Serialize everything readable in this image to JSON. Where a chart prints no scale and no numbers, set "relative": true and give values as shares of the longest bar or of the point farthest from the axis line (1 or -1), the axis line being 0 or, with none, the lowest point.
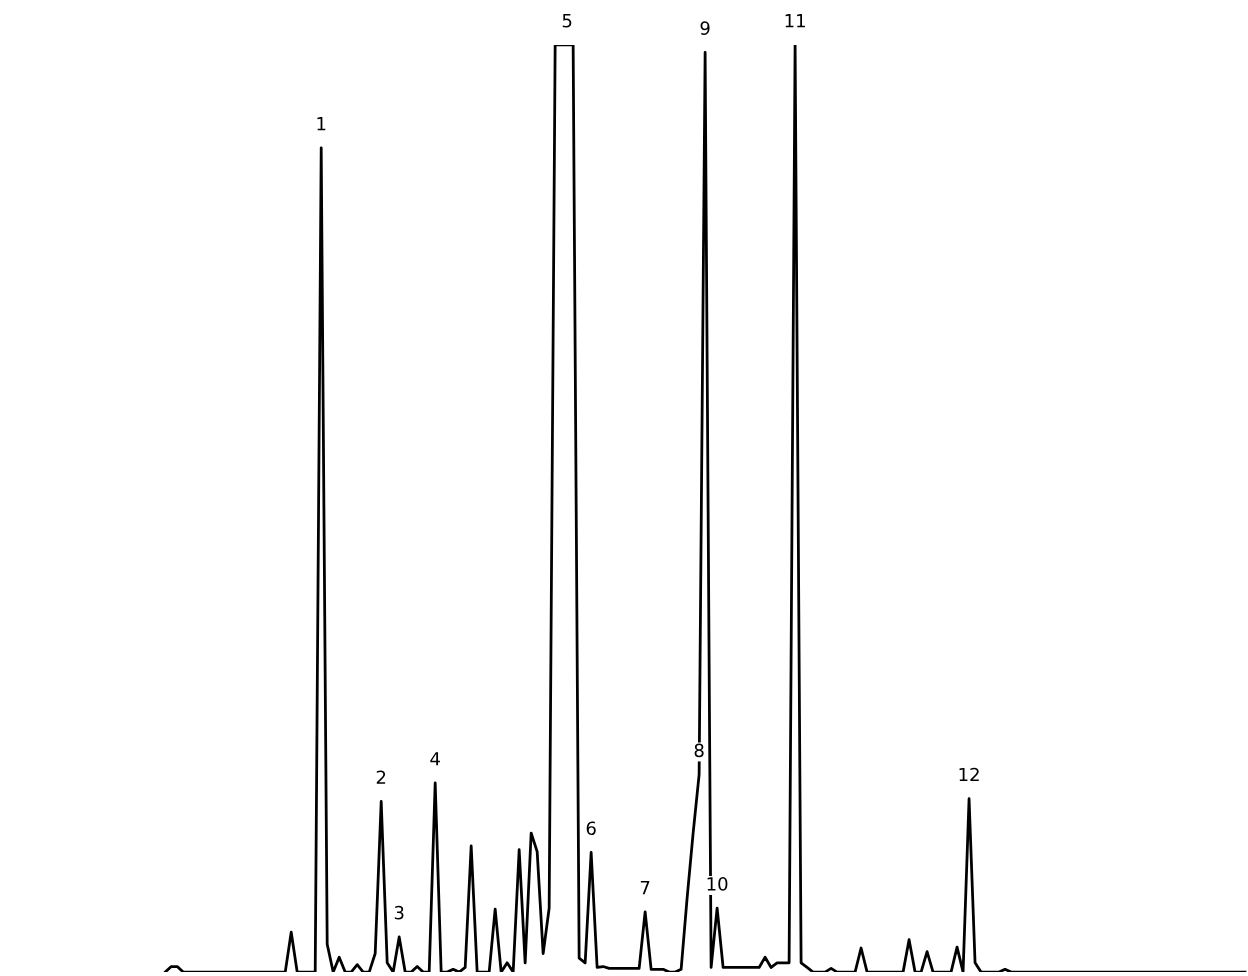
{
  "chart_data": {
    "type": "line",
    "relative": true,
    "color": "#000000",
    "marker": "none",
    "line_style": "solid",
    "legend": false,
    "categories": [
      null,
      null,
      null,
      null,
      null,
      null,
      null,
      null,
      null,
      null,
      null,
      null,
      null,
      null,
      null,
      null,
      null,
      null,
      null,
      null,
      null,
      null,
      null,
      null,
      null,
      null,
      "1",
      null,
      null,
      null,
      null,
      null,
      null,
      null,
      null,
      null,
      "2",
      null,
      null,
      "3",
      null,
      null,
      null,
      null,
      null,
      "4",
      null,
      null,
      null,
      null,
      null,
      null,
      null,
      null,
      null,
      null,
      null,
      null,
      null,
      null,
      null,
      null,
      null,
      null,
      null,
      null,
      null,
      "5",
      null,
      null,
      null,
      "6",
      null,
      null,
      null,
      null,
      null,
      null,
      null,
      null,
      "7",
      null,
      null,
      null,
      null,
      null,
      null,
      null,
      null,
      "8",
      "9",
      null,
      "10",
      null,
      null,
      null,
      null,
      null,
      null,
      null,
      null,
      null,
      null,
      null,
      null,
      "11",
      null,
      null,
      null,
      null,
      null,
      null,
      null,
      null,
      null,
      null,
      null,
      null,
      null,
      null,
      null,
      null,
      null,
      null,
      null,
      null,
      null,
      null,
      null,
      null,
      null,
      null,
      null,
      null,
      "12",
      null,
      null,
      null,
      null,
      null,
      null,
      null,
      null,
      null,
      null,
      null,
      null,
      null,
      null,
      null,
      null,
      null,
      null,
      null,
      null,
      null,
      null,
      null,
      null,
      null,
      null,
      null,
      null,
      null,
      null,
      null,
      null,
      null,
      null,
      null,
      null,
      null,
      null,
      null,
      null,
      null,
      null,
      null,
      null,
      null,
      null
    ],
    "values": [
      0,
      0.006,
      0.006,
      0,
      0,
      0,
      0,
      0,
      0,
      0,
      0,
      0,
      0,
      0,
      0,
      0,
      0,
      0,
      0,
      0,
      0,
      0.043,
      0,
      0,
      0,
      0,
      0.889,
      0.03,
      0,
      0.016,
      0,
      0,
      0.008,
      0,
      0,
      0.02,
      0.184,
      0.01,
      0,
      0.038,
      0,
      0,
      0.006,
      0,
      0,
      0.204,
      0,
      0,
      0.003,
      0,
      0.005,
      0.136,
      0,
      0,
      0,
      0.068,
      0,
      0.01,
      0,
      0.132,
      0.01,
      0.15,
      0.13,
      0.02,
      0.069,
      1,
      1,
      1,
      1,
      0.015,
      0.01,
      0.129,
      0.005,
      0.006,
      0.004,
      0.004,
      0.004,
      0.004,
      0.004,
      0.004,
      0.065,
      0.003,
      0.003,
      0.003,
      0,
      0,
      0.003,
      0.08,
      0.15,
      0.213,
      0.992,
      0.005,
      0.069,
      0.005,
      0.005,
      0.005,
      0.005,
      0.005,
      0.005,
      0.005,
      0.016,
      0.005,
      0.01,
      0.01,
      0.01,
      1,
      0.01,
      0.005,
      0,
      0,
      0,
      0.004,
      0,
      0,
      0,
      0,
      0.026,
      0,
      0,
      0,
      0,
      0,
      0,
      0,
      0.035,
      0,
      0,
      0.022,
      0,
      0,
      0,
      0,
      0.027,
      0,
      0.187,
      0.01,
      0,
      0,
      0,
      0,
      0.003,
      0,
      0,
      0,
      0,
      0,
      0,
      0,
      0,
      0,
      0,
      0,
      0,
      0,
      0,
      0,
      0,
      0,
      0,
      0,
      0,
      0,
      0,
      0,
      0,
      0,
      0,
      0,
      0,
      0,
      0,
      0,
      0,
      0,
      0,
      0,
      0,
      0,
      0,
      0,
      0
    ]
  }
}
